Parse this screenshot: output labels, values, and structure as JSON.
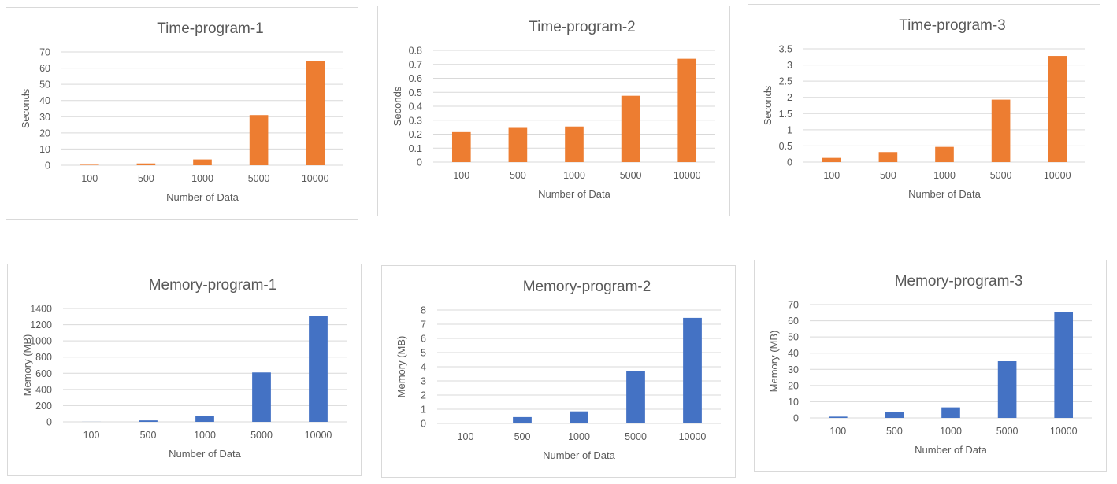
{
  "colors": {
    "time_bars": "#ED7D31",
    "memory_bars": "#4472C4",
    "gridline": "#D9D9D9",
    "text": "#595959"
  },
  "chart_data": [
    {
      "type": "bar",
      "title": "Time-program-1",
      "xlabel": "Number of Data",
      "ylabel": "Seconds",
      "categories": [
        "100",
        "500",
        "1000",
        "5000",
        "10000"
      ],
      "values": [
        0.3,
        1.1,
        3.6,
        31,
        64.5
      ],
      "ylim": [
        0,
        70
      ],
      "yticks": [
        "0",
        "10",
        "20",
        "30",
        "40",
        "50",
        "60",
        "70"
      ],
      "grid": true,
      "bar_color": "#ED7D31"
    },
    {
      "type": "bar",
      "title": "Time-program-2",
      "xlabel": "Number of Data",
      "ylabel": "Seconds",
      "categories": [
        "100",
        "500",
        "1000",
        "5000",
        "10000"
      ],
      "values": [
        0.215,
        0.245,
        0.255,
        0.475,
        0.74
      ],
      "ylim": [
        0,
        0.8
      ],
      "yticks": [
        "0",
        "0.1",
        "0.2",
        "0.3",
        "0.4",
        "0.5",
        "0.6",
        "0.7",
        "0.8"
      ],
      "grid": true,
      "bar_color": "#ED7D31"
    },
    {
      "type": "bar",
      "title": "Time-program-3",
      "xlabel": "Number of Data",
      "ylabel": "Seconds",
      "categories": [
        "100",
        "500",
        "1000",
        "5000",
        "10000"
      ],
      "values": [
        0.13,
        0.31,
        0.47,
        1.93,
        3.28
      ],
      "ylim": [
        0,
        3.5
      ],
      "yticks": [
        "0",
        "0.5",
        "1",
        "1.5",
        "2",
        "2.5",
        "3",
        "3.5"
      ],
      "grid": true,
      "bar_color": "#ED7D31"
    },
    {
      "type": "bar",
      "title": "Memory-program-1",
      "xlabel": "Number of Data",
      "ylabel": "Memory (MB)",
      "categories": [
        "100",
        "500",
        "1000",
        "5000",
        "10000"
      ],
      "values": [
        0.8,
        18,
        68,
        610,
        1310
      ],
      "ylim": [
        0,
        1400
      ],
      "yticks": [
        "0",
        "200",
        "400",
        "600",
        "800",
        "1000",
        "1200",
        "1400"
      ],
      "grid": true,
      "bar_color": "#4472C4"
    },
    {
      "type": "bar",
      "title": "Memory-program-2",
      "xlabel": "Number of Data",
      "ylabel": "Memory (MB)",
      "categories": [
        "100",
        "500",
        "1000",
        "5000",
        "10000"
      ],
      "values": [
        0.01,
        0.45,
        0.85,
        3.7,
        7.45
      ],
      "ylim": [
        0,
        8
      ],
      "yticks": [
        "0",
        "1",
        "2",
        "3",
        "4",
        "5",
        "6",
        "7",
        "8"
      ],
      "grid": true,
      "bar_color": "#4472C4"
    },
    {
      "type": "bar",
      "title": "Memory-program-3",
      "xlabel": "Number of Data",
      "ylabel": "Memory (MB)",
      "categories": [
        "100",
        "500",
        "1000",
        "5000",
        "10000"
      ],
      "values": [
        0.8,
        3.5,
        6.5,
        35,
        65.5
      ],
      "ylim": [
        0,
        70
      ],
      "yticks": [
        "0",
        "10",
        "20",
        "30",
        "40",
        "50",
        "60",
        "70"
      ],
      "grid": true,
      "bar_color": "#4472C4"
    }
  ]
}
